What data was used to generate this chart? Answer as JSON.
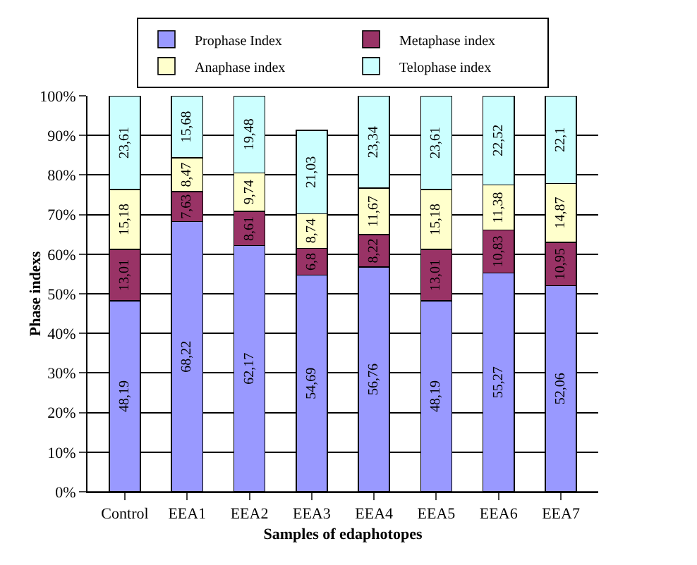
{
  "chart_data": {
    "type": "bar",
    "stacked": true,
    "xlabel": "Samples of edaphotopes",
    "ylabel": "Phase indexs",
    "categories": [
      "Control",
      "EEA1",
      "EEA2",
      "EEA3",
      "EEA4",
      "EEA5",
      "EEA6",
      "EEA7"
    ],
    "series": [
      {
        "name": "Prophase Index",
        "color": "#9999ff",
        "values": [
          48.19,
          68.22,
          62.17,
          54.69,
          56.76,
          48.19,
          55.27,
          52.06
        ],
        "value_labels": [
          "48,19",
          "68,22",
          "62,17",
          "54,69",
          "56,76",
          "48,19",
          "55,27",
          "52,06"
        ]
      },
      {
        "name": "Metaphase index",
        "color": "#993366",
        "values": [
          13.01,
          7.63,
          8.61,
          6.8,
          8.22,
          13.01,
          10.83,
          10.95
        ],
        "value_labels": [
          "13,01",
          "7,63",
          "8,61",
          "6,8",
          "8,22",
          "13,01",
          "10,83",
          "10,95"
        ]
      },
      {
        "name": "Anaphase index",
        "color": "#ffffcc",
        "values": [
          15.18,
          8.47,
          9.74,
          8.74,
          11.67,
          15.18,
          11.38,
          14.87
        ],
        "value_labels": [
          "15,18",
          "8,47",
          "9,74",
          "8,74",
          "11,67",
          "15,18",
          "11,38",
          "14,87"
        ]
      },
      {
        "name": "Telophase index",
        "color": "#ccffff",
        "values": [
          23.61,
          15.68,
          19.48,
          21.03,
          23.34,
          23.61,
          22.52,
          22.1
        ],
        "value_labels": [
          "23,61",
          "15,68",
          "19,48",
          "21,03",
          "23,34",
          "23,61",
          "22,52",
          "22,1"
        ]
      }
    ],
    "ylim": [
      0,
      100
    ],
    "yticks": [
      {
        "value": 0,
        "label": "0%"
      },
      {
        "value": 10,
        "label": "10%"
      },
      {
        "value": 20,
        "label": "20%"
      },
      {
        "value": 30,
        "label": "30%"
      },
      {
        "value": 40,
        "label": "40%"
      },
      {
        "value": 50,
        "label": "50%"
      },
      {
        "value": 60,
        "label": "60%"
      },
      {
        "value": 70,
        "label": "70%"
      },
      {
        "value": 80,
        "label": "80%"
      },
      {
        "value": 90,
        "label": "90%"
      },
      {
        "value": 100,
        "label": "100%"
      }
    ],
    "grid": "y",
    "legend": "top"
  }
}
